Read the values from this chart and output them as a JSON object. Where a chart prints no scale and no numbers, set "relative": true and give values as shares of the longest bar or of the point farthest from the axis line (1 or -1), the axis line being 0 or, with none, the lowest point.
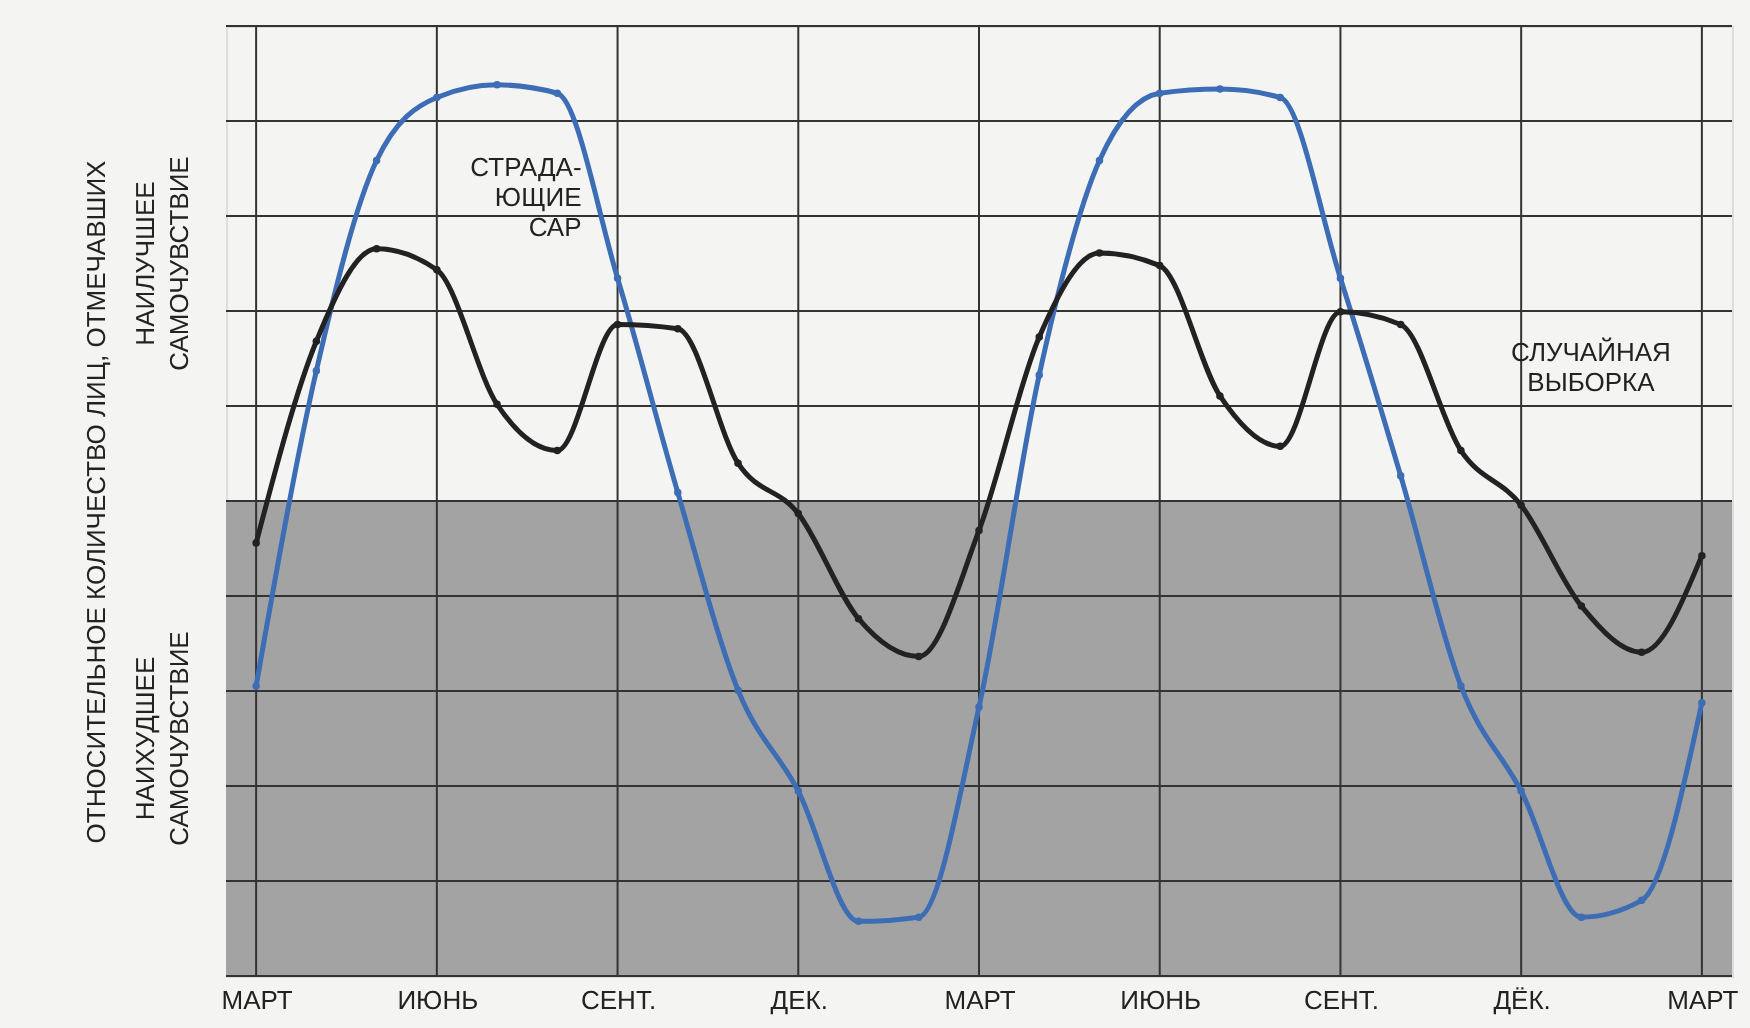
{
  "chart_data": {
    "type": "line",
    "relative": true,
    "ylabel": "ОТНОСИТЕЛЬНОЕ КОЛИЧЕСТВО ЛИЦ, ОТМЕЧАВШИХ",
    "annotations": [
      "НАИЛУЧШЕЕ САМОЧУВСТВИЕ",
      "НАИХУДШЕЕ САМОЧУВСТВИЕ"
    ],
    "categories": [
      "МАРТ",
      null,
      null,
      "ИЮНЬ",
      null,
      null,
      "СЕНТ.",
      null,
      null,
      "ДЕК.",
      null,
      null,
      "МАРТ",
      null,
      null,
      "ИЮНЬ",
      null,
      null,
      "СЕНТ.",
      null,
      null,
      "ДЁК.",
      null,
      null,
      "МАРТ"
    ],
    "series": [
      {
        "name": "СТРАДА- ЮЩИЕ САР",
        "color": "#3d6db5",
        "values": [
          -0.44,
          0.31,
          0.81,
          0.96,
          0.99,
          0.97,
          0.53,
          0.02,
          -0.45,
          -0.69,
          -1,
          -0.99,
          -0.49,
          0.3,
          0.81,
          0.97,
          0.98,
          0.96,
          0.53,
          0.06,
          -0.44,
          -0.69,
          -0.99,
          -0.95,
          -0.48
        ]
      },
      {
        "name": "СЛУЧАЙНАЯ ВЫБОРКА",
        "color": "#222222",
        "values": [
          -0.1,
          0.38,
          0.6,
          0.55,
          0.23,
          0.12,
          0.42,
          0.41,
          0.09,
          -0.03,
          -0.28,
          -0.37,
          -0.07,
          0.39,
          0.59,
          0.56,
          0.25,
          0.13,
          0.45,
          0.42,
          0.12,
          -0.01,
          -0.25,
          -0.36,
          -0.13
        ]
      }
    ],
    "bands": [
      {
        "axis": "y",
        "from": -1.13,
        "to": 0,
        "color": "#a3a3a3"
      }
    ],
    "grid": true,
    "legend": false,
    "marker": "circle",
    "line_style": "solid"
  }
}
